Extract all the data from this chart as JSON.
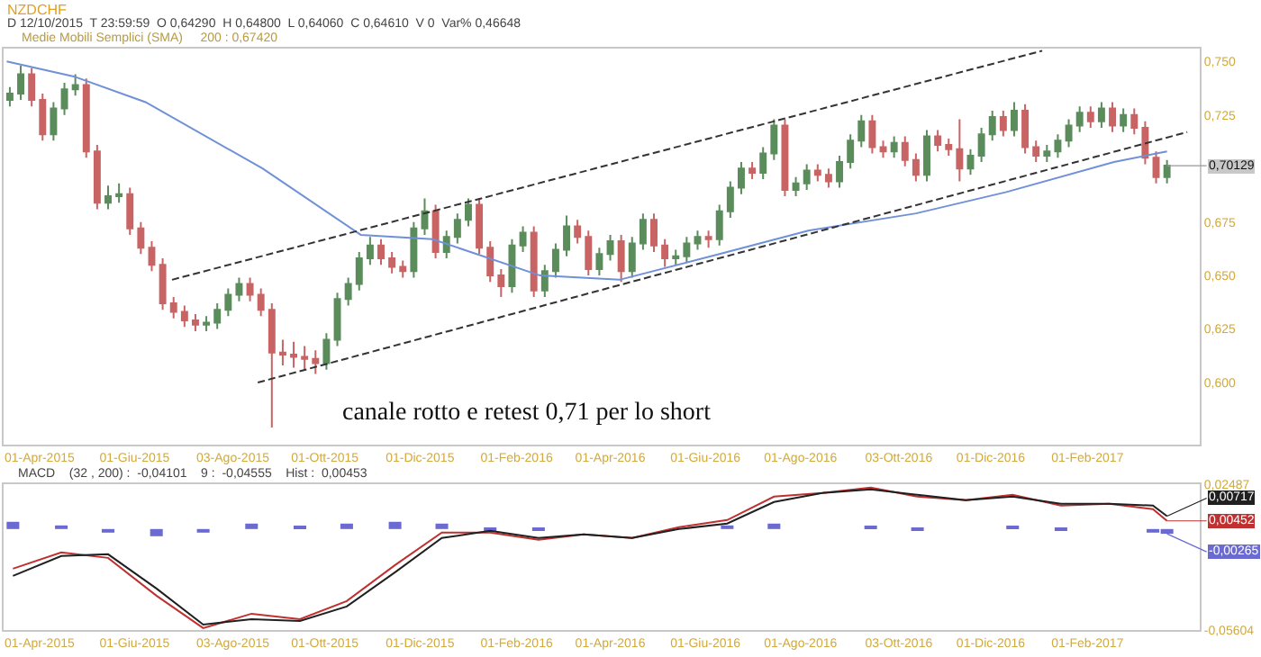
{
  "chart_data": [
    {
      "type": "candlestick",
      "title": "NZDCHF",
      "subtitle": "D 12/10/2015  T 23:59:59  O 0,64290  H 0,64800  L 0,64060  C 0,64610  V 0  Var% 0,46648",
      "annotations": [
        "Medie Mobili Semplici (SMA)     200 : 0,67420",
        "canale rotto e retest 0,71 per lo short",
        {
          "text": "0,70129",
          "x": "2017-03-24",
          "y": 0.70129
        }
      ],
      "x": [
        "2015-03-13",
        "2015-03-20",
        "2015-03-27",
        "2015-04-03",
        "2015-04-10",
        "2015-04-17",
        "2015-04-24",
        "2015-05-01",
        "2015-05-08",
        "2015-05-15",
        "2015-05-22",
        "2015-05-29",
        "2015-06-05",
        "2015-06-12",
        "2015-06-19",
        "2015-06-26",
        "2015-07-03",
        "2015-07-10",
        "2015-07-17",
        "2015-07-24",
        "2015-07-31",
        "2015-08-07",
        "2015-08-14",
        "2015-08-21",
        "2015-08-28",
        "2015-09-04",
        "2015-09-11",
        "2015-09-18",
        "2015-09-25",
        "2015-10-02",
        "2015-10-09",
        "2015-10-16",
        "2015-10-23",
        "2015-10-30",
        "2015-11-06",
        "2015-11-13",
        "2015-11-20",
        "2015-11-27",
        "2015-12-04",
        "2015-12-11",
        "2015-12-18",
        "2015-12-25",
        "2016-01-01",
        "2016-01-08",
        "2016-01-15",
        "2016-01-22",
        "2016-01-29",
        "2016-02-05",
        "2016-02-12",
        "2016-02-19",
        "2016-02-26",
        "2016-03-04",
        "2016-03-11",
        "2016-03-18",
        "2016-03-25",
        "2016-04-01",
        "2016-04-08",
        "2016-04-15",
        "2016-04-22",
        "2016-04-29",
        "2016-05-06",
        "2016-05-13",
        "2016-05-20",
        "2016-05-27",
        "2016-06-03",
        "2016-06-10",
        "2016-06-17",
        "2016-06-24",
        "2016-07-01",
        "2016-07-08",
        "2016-07-15",
        "2016-07-22",
        "2016-07-29",
        "2016-08-05",
        "2016-08-12",
        "2016-08-19",
        "2016-08-26",
        "2016-09-02",
        "2016-09-09",
        "2016-09-16",
        "2016-09-23",
        "2016-09-30",
        "2016-10-07",
        "2016-10-14",
        "2016-10-21",
        "2016-10-28",
        "2016-11-04",
        "2016-11-11",
        "2016-11-18",
        "2016-11-25",
        "2016-12-02",
        "2016-12-09",
        "2016-12-16",
        "2016-12-23",
        "2016-12-30",
        "2017-01-06",
        "2017-01-13",
        "2017-01-20",
        "2017-01-27",
        "2017-02-03",
        "2017-02-10",
        "2017-02-17",
        "2017-02-24",
        "2017-03-03",
        "2017-03-10",
        "2017-03-17",
        "2017-03-24"
      ],
      "ohlc": [
        [
          0.732,
          0.738,
          0.729,
          0.735
        ],
        [
          0.735,
          0.748,
          0.732,
          0.744
        ],
        [
          0.744,
          0.747,
          0.729,
          0.732
        ],
        [
          0.732,
          0.735,
          0.713,
          0.716
        ],
        [
          0.716,
          0.731,
          0.713,
          0.728
        ],
        [
          0.728,
          0.74,
          0.725,
          0.737
        ],
        [
          0.737,
          0.744,
          0.734,
          0.739
        ],
        [
          0.739,
          0.742,
          0.705,
          0.708
        ],
        [
          0.708,
          0.711,
          0.681,
          0.684
        ],
        [
          0.684,
          0.692,
          0.681,
          0.687
        ],
        [
          0.687,
          0.693,
          0.684,
          0.688
        ],
        [
          0.688,
          0.691,
          0.669,
          0.672
        ],
        [
          0.672,
          0.675,
          0.66,
          0.663
        ],
        [
          0.663,
          0.666,
          0.652,
          0.655
        ],
        [
          0.655,
          0.658,
          0.634,
          0.637
        ],
        [
          0.637,
          0.64,
          0.63,
          0.633
        ],
        [
          0.633,
          0.636,
          0.626,
          0.629
        ],
        [
          0.629,
          0.632,
          0.624,
          0.627
        ],
        [
          0.627,
          0.631,
          0.624,
          0.628
        ],
        [
          0.628,
          0.637,
          0.625,
          0.634
        ],
        [
          0.634,
          0.644,
          0.631,
          0.641
        ],
        [
          0.641,
          0.649,
          0.638,
          0.646
        ],
        [
          0.646,
          0.649,
          0.638,
          0.641
        ],
        [
          0.641,
          0.644,
          0.631,
          0.634
        ],
        [
          0.634,
          0.637,
          0.579,
          0.614
        ],
        [
          0.614,
          0.62,
          0.608,
          0.613
        ],
        [
          0.613,
          0.619,
          0.607,
          0.612
        ],
        [
          0.612,
          0.617,
          0.606,
          0.611
        ],
        [
          0.611,
          0.615,
          0.604,
          0.609
        ],
        [
          0.609,
          0.623,
          0.606,
          0.62
        ],
        [
          0.62,
          0.642,
          0.617,
          0.639
        ],
        [
          0.639,
          0.649,
          0.636,
          0.646
        ],
        [
          0.646,
          0.661,
          0.643,
          0.658
        ],
        [
          0.658,
          0.668,
          0.655,
          0.664
        ],
        [
          0.664,
          0.667,
          0.655,
          0.658
        ],
        [
          0.658,
          0.661,
          0.651,
          0.654
        ],
        [
          0.654,
          0.657,
          0.649,
          0.652
        ],
        [
          0.652,
          0.675,
          0.649,
          0.672
        ],
        [
          0.672,
          0.686,
          0.669,
          0.68
        ],
        [
          0.68,
          0.683,
          0.658,
          0.661
        ],
        [
          0.661,
          0.671,
          0.658,
          0.668
        ],
        [
          0.668,
          0.679,
          0.665,
          0.676
        ],
        [
          0.676,
          0.686,
          0.673,
          0.683
        ],
        [
          0.683,
          0.686,
          0.66,
          0.663
        ],
        [
          0.663,
          0.666,
          0.647,
          0.65
        ],
        [
          0.65,
          0.653,
          0.64,
          0.645
        ],
        [
          0.645,
          0.667,
          0.642,
          0.664
        ],
        [
          0.664,
          0.673,
          0.661,
          0.67
        ],
        [
          0.67,
          0.673,
          0.64,
          0.643
        ],
        [
          0.643,
          0.655,
          0.64,
          0.652
        ],
        [
          0.652,
          0.665,
          0.649,
          0.662
        ],
        [
          0.662,
          0.678,
          0.659,
          0.673
        ],
        [
          0.673,
          0.676,
          0.665,
          0.668
        ],
        [
          0.668,
          0.671,
          0.65,
          0.653
        ],
        [
          0.653,
          0.663,
          0.65,
          0.66
        ],
        [
          0.66,
          0.669,
          0.657,
          0.666
        ],
        [
          0.666,
          0.669,
          0.647,
          0.652
        ],
        [
          0.652,
          0.668,
          0.649,
          0.665
        ],
        [
          0.665,
          0.679,
          0.662,
          0.676
        ],
        [
          0.676,
          0.679,
          0.661,
          0.664
        ],
        [
          0.664,
          0.667,
          0.654,
          0.658
        ],
        [
          0.658,
          0.662,
          0.655,
          0.659
        ],
        [
          0.659,
          0.668,
          0.656,
          0.665
        ],
        [
          0.665,
          0.671,
          0.662,
          0.668
        ],
        [
          0.668,
          0.671,
          0.663,
          0.667
        ],
        [
          0.667,
          0.683,
          0.664,
          0.68
        ],
        [
          0.68,
          0.694,
          0.677,
          0.691
        ],
        [
          0.691,
          0.703,
          0.688,
          0.7
        ],
        [
          0.7,
          0.703,
          0.695,
          0.698
        ],
        [
          0.698,
          0.71,
          0.695,
          0.707
        ],
        [
          0.707,
          0.723,
          0.704,
          0.72
        ],
        [
          0.72,
          0.723,
          0.687,
          0.69
        ],
        [
          0.69,
          0.696,
          0.687,
          0.693
        ],
        [
          0.693,
          0.702,
          0.69,
          0.699
        ],
        [
          0.699,
          0.702,
          0.694,
          0.697
        ],
        [
          0.697,
          0.7,
          0.691,
          0.694
        ],
        [
          0.694,
          0.706,
          0.691,
          0.703
        ],
        [
          0.703,
          0.716,
          0.7,
          0.713
        ],
        [
          0.713,
          0.725,
          0.71,
          0.722
        ],
        [
          0.722,
          0.725,
          0.707,
          0.71
        ],
        [
          0.71,
          0.713,
          0.705,
          0.708
        ],
        [
          0.708,
          0.715,
          0.705,
          0.712
        ],
        [
          0.712,
          0.715,
          0.701,
          0.704
        ],
        [
          0.704,
          0.707,
          0.694,
          0.697
        ],
        [
          0.697,
          0.718,
          0.694,
          0.715
        ],
        [
          0.715,
          0.718,
          0.708,
          0.711
        ],
        [
          0.711,
          0.714,
          0.706,
          0.709
        ],
        [
          0.709,
          0.723,
          0.694,
          0.7
        ],
        [
          0.7,
          0.709,
          0.697,
          0.706
        ],
        [
          0.706,
          0.719,
          0.703,
          0.716
        ],
        [
          0.716,
          0.727,
          0.713,
          0.724
        ],
        [
          0.724,
          0.727,
          0.715,
          0.718
        ],
        [
          0.718,
          0.731,
          0.715,
          0.727
        ],
        [
          0.727,
          0.73,
          0.707,
          0.71
        ],
        [
          0.71,
          0.713,
          0.703,
          0.706
        ],
        [
          0.706,
          0.711,
          0.703,
          0.708
        ],
        [
          0.708,
          0.716,
          0.705,
          0.713
        ],
        [
          0.713,
          0.723,
          0.71,
          0.72
        ],
        [
          0.72,
          0.729,
          0.717,
          0.726
        ],
        [
          0.726,
          0.729,
          0.719,
          0.722
        ],
        [
          0.722,
          0.731,
          0.719,
          0.728
        ],
        [
          0.728,
          0.731,
          0.717,
          0.72
        ],
        [
          0.72,
          0.728,
          0.717,
          0.725
        ],
        [
          0.725,
          0.728,
          0.716,
          0.719
        ],
        [
          0.719,
          0.722,
          0.702,
          0.705
        ],
        [
          0.705,
          0.708,
          0.693,
          0.696
        ],
        [
          0.696,
          0.704,
          0.693,
          0.70129
        ]
      ],
      "colors": [
        "#5b8c5b",
        "#5b8c5b",
        "#c86464",
        "#c86464",
        "#5b8c5b",
        "#5b8c5b",
        "#5b8c5b",
        "#c86464",
        "#c86464",
        "#5b8c5b",
        "#5b8c5b",
        "#c86464",
        "#c86464",
        "#c86464",
        "#c86464",
        "#c86464",
        "#c86464",
        "#c86464",
        "#5b8c5b",
        "#5b8c5b",
        "#5b8c5b",
        "#5b8c5b",
        "#c86464",
        "#c86464",
        "#c86464",
        "#c86464",
        "#c86464",
        "#c86464",
        "#c86464",
        "#5b8c5b",
        "#5b8c5b",
        "#5b8c5b",
        "#5b8c5b",
        "#5b8c5b",
        "#c86464",
        "#c86464",
        "#c86464",
        "#5b8c5b",
        "#5b8c5b",
        "#c86464",
        "#5b8c5b",
        "#5b8c5b",
        "#5b8c5b",
        "#c86464",
        "#c86464",
        "#c86464",
        "#5b8c5b",
        "#5b8c5b",
        "#c86464",
        "#5b8c5b",
        "#5b8c5b",
        "#5b8c5b",
        "#c86464",
        "#c86464",
        "#5b8c5b",
        "#5b8c5b",
        "#c86464",
        "#5b8c5b",
        "#5b8c5b",
        "#c86464",
        "#c86464",
        "#5b8c5b",
        "#5b8c5b",
        "#5b8c5b",
        "#c86464",
        "#5b8c5b",
        "#5b8c5b",
        "#5b8c5b",
        "#c86464",
        "#5b8c5b",
        "#5b8c5b",
        "#c86464",
        "#5b8c5b",
        "#5b8c5b",
        "#c86464",
        "#c86464",
        "#5b8c5b",
        "#5b8c5b",
        "#5b8c5b",
        "#c86464",
        "#c86464",
        "#5b8c5b",
        "#c86464",
        "#c86464",
        "#5b8c5b",
        "#c86464",
        "#c86464",
        "#c86464",
        "#5b8c5b",
        "#5b8c5b",
        "#5b8c5b",
        "#c86464",
        "#5b8c5b",
        "#c86464",
        "#c86464",
        "#5b8c5b",
        "#5b8c5b",
        "#5b8c5b",
        "#5b8c5b",
        "#c86464",
        "#5b8c5b",
        "#c86464",
        "#5b8c5b",
        "#c86464",
        "#c86464",
        "#c86464",
        "#5b8c5b"
      ],
      "series": [
        {
          "type": "line",
          "color": "#7090d8",
          "line_style": "solid",
          "x": [
            "2015-03-11",
            "2015-04-23",
            "2015-06-08",
            "2015-08-22",
            "2015-10-24",
            "2015-12-09",
            "2016-02-16",
            "2016-04-07",
            "2016-06-10",
            "2016-08-06",
            "2016-10-14",
            "2016-12-11",
            "2017-02-18",
            "2017-03-24"
          ],
          "values": [
            0.75,
            0.743,
            0.731,
            0.7,
            0.669,
            0.667,
            0.65,
            0.648,
            0.66,
            0.671,
            0.679,
            0.689,
            0.703,
            0.708
          ]
        },
        {
          "type": "line",
          "color": "#333333",
          "line_style": "dashed",
          "x": [
            "2015-06-25",
            "2017-01-03"
          ],
          "values": [
            0.648,
            0.755
          ]
        },
        {
          "type": "line",
          "color": "#333333",
          "line_style": "dashed",
          "x": [
            "2015-08-19",
            "2017-04-06"
          ],
          "values": [
            0.6,
            0.717
          ]
        }
      ],
      "xlim": [
        "2015-03-09",
        "2017-04-14"
      ],
      "xticks": [
        {
          "value": "2015-04-01",
          "label": "01-Apr-2015"
        },
        {
          "value": "2015-06-01",
          "label": "01-Giu-2015"
        },
        {
          "value": "2015-08-03",
          "label": "03-Ago-2015"
        },
        {
          "value": "2015-10-01",
          "label": "01-Ott-2015"
        },
        {
          "value": "2015-12-01",
          "label": "01-Dic-2015"
        },
        {
          "value": "2016-02-01",
          "label": "01-Feb-2016"
        },
        {
          "value": "2016-04-01",
          "label": "01-Apr-2016"
        },
        {
          "value": "2016-06-01",
          "label": "01-Giu-2016"
        },
        {
          "value": "2016-08-01",
          "label": "01-Ago-2016"
        },
        {
          "value": "2016-10-03",
          "label": "03-Ott-2016"
        },
        {
          "value": "2016-12-01",
          "label": "01-Dic-2016"
        },
        {
          "value": "2017-02-01",
          "label": "01-Feb-2017"
        }
      ],
      "ylim": [
        0.571,
        0.756
      ],
      "yticks": [
        {
          "value": 0.75,
          "label": "0,750"
        },
        {
          "value": 0.725,
          "label": "0,725"
        },
        {
          "value": 0.675,
          "label": "0,675"
        },
        {
          "value": 0.65,
          "label": "0,650"
        },
        {
          "value": 0.625,
          "label": "0,625"
        },
        {
          "value": 0.6,
          "label": "0,600"
        }
      ]
    },
    {
      "type": "line",
      "title": "MACD    (32 , 200) :  -0,04101    9 :  -0,04555    Hist :  0,00453",
      "x": [
        "2015-03-15",
        "2015-04-15",
        "2015-05-15",
        "2015-06-15",
        "2015-07-15",
        "2015-08-15",
        "2015-09-15",
        "2015-10-15",
        "2015-11-15",
        "2015-12-15",
        "2016-01-15",
        "2016-02-15",
        "2016-03-15",
        "2016-04-15",
        "2016-05-15",
        "2016-06-15",
        "2016-07-15",
        "2016-08-15",
        "2016-09-15",
        "2016-10-15",
        "2016-11-15",
        "2016-12-15",
        "2017-01-15",
        "2017-02-15",
        "2017-03-15",
        "2017-03-24"
      ],
      "series": [
        {
          "type": "bar",
          "color": "#6a6ad0",
          "values": [
            0.004,
            0.002,
            -0.002,
            -0.004,
            -0.002,
            0.003,
            0.001,
            0.003,
            0.004,
            0.003,
            -0.001,
            -0.001,
            0,
            0,
            null,
            0.002,
            0.003,
            0,
            0.001,
            -0.001,
            0,
            0.001,
            -0.001,
            0,
            -0.002,
            -0.00265
          ],
          "value_labels": [
            null,
            null,
            null,
            null,
            null,
            null,
            null,
            null,
            null,
            null,
            null,
            null,
            null,
            null,
            null,
            null,
            null,
            null,
            null,
            null,
            null,
            null,
            null,
            null,
            null,
            "-0,00265"
          ]
        },
        {
          "type": "line",
          "color": "#c03030",
          "values": [
            -0.022,
            -0.013,
            -0.016,
            -0.037,
            -0.055,
            -0.047,
            -0.05,
            -0.04,
            -0.02,
            -0.002,
            -0.002,
            -0.006,
            -0.003,
            -0.005,
            0.001,
            0.005,
            0.018,
            0.02,
            0.023,
            0.018,
            0.016,
            0.019,
            0.013,
            0.014,
            0.011,
            0.00452
          ],
          "value_labels": [
            null,
            null,
            null,
            null,
            null,
            null,
            null,
            null,
            null,
            null,
            null,
            null,
            null,
            null,
            null,
            null,
            null,
            null,
            null,
            null,
            null,
            null,
            null,
            null,
            null,
            "0,00452"
          ]
        },
        {
          "type": "line",
          "color": "#202020",
          "values": [
            -0.026,
            -0.015,
            -0.014,
            -0.033,
            -0.053,
            -0.05,
            -0.051,
            -0.043,
            -0.024,
            -0.005,
            -0.001,
            -0.005,
            -0.003,
            -0.005,
            0.0,
            0.003,
            0.015,
            0.02,
            0.022,
            0.019,
            0.016,
            0.018,
            0.014,
            0.014,
            0.013,
            0.00717
          ],
          "value_labels": [
            null,
            null,
            null,
            null,
            null,
            null,
            null,
            null,
            null,
            null,
            null,
            null,
            null,
            null,
            null,
            null,
            null,
            null,
            null,
            null,
            null,
            null,
            null,
            null,
            null,
            "0,00717"
          ]
        }
      ],
      "xlim": [
        "2015-03-09",
        "2017-04-14"
      ],
      "xticks": [
        {
          "value": "2015-04-01",
          "label": "01-Apr-2015"
        },
        {
          "value": "2015-06-01",
          "label": "01-Giu-2015"
        },
        {
          "value": "2015-08-03",
          "label": "03-Ago-2015"
        },
        {
          "value": "2015-10-01",
          "label": "01-Ott-2015"
        },
        {
          "value": "2015-12-01",
          "label": "01-Dic-2015"
        },
        {
          "value": "2016-02-01",
          "label": "01-Feb-2016"
        },
        {
          "value": "2016-04-01",
          "label": "01-Apr-2016"
        },
        {
          "value": "2016-06-01",
          "label": "01-Giu-2016"
        },
        {
          "value": "2016-08-01",
          "label": "01-Ago-2016"
        },
        {
          "value": "2016-10-03",
          "label": "03-Ott-2016"
        },
        {
          "value": "2016-12-01",
          "label": "01-Dic-2016"
        },
        {
          "value": "2017-02-01",
          "label": "01-Feb-2017"
        }
      ],
      "ylim": [
        -0.05604,
        0.02487
      ],
      "yticks": [
        {
          "value": 0.02487,
          "label": "0,02487"
        },
        {
          "value": -0.05604,
          "label": "-0,05604"
        }
      ]
    }
  ]
}
